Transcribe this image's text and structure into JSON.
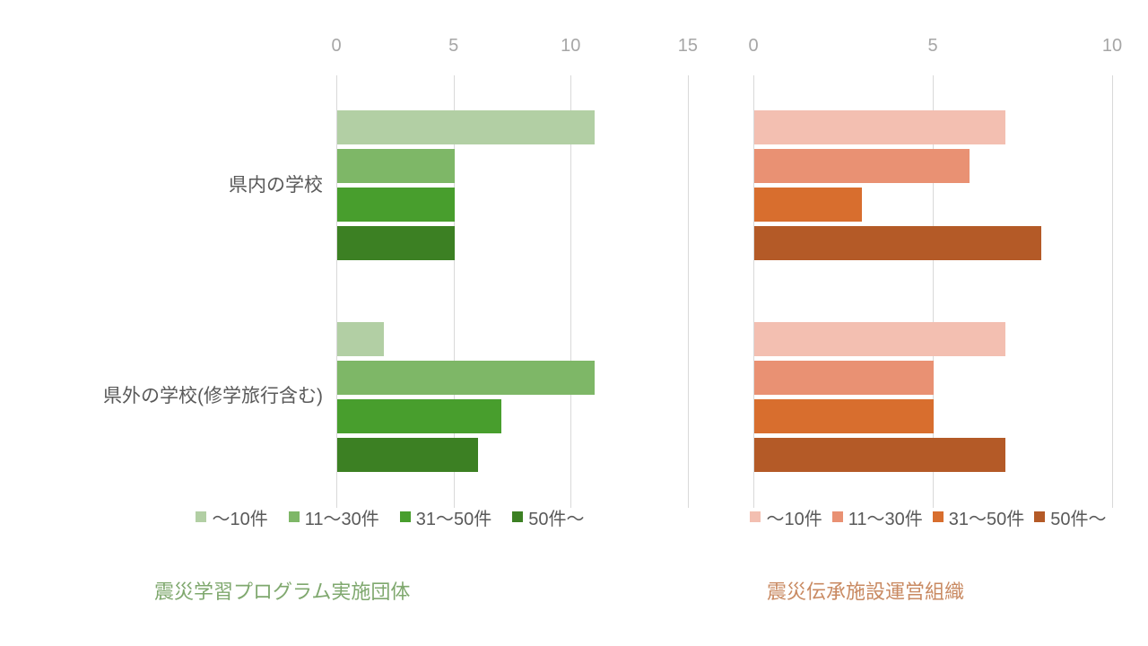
{
  "page": {
    "background": "#ffffff",
    "gridline_color": "#d9d9d9",
    "tick_label_color": "#a6a6a6",
    "category_label_color": "#595959",
    "legend_text_color": "#595959"
  },
  "chart_data": [
    {
      "type": "bar",
      "orientation": "horizontal",
      "title": "震災学習プログラム実施団体",
      "title_color": "#7fa86e",
      "categories": [
        "県内の学校",
        "県外の学校(修学旅行含む)"
      ],
      "series": [
        {
          "name": "～10件",
          "color": "#b2cfa4",
          "values": [
            11,
            2
          ]
        },
        {
          "name": "11～30件",
          "color": "#7eb767",
          "values": [
            5,
            11
          ]
        },
        {
          "name": "31～50件",
          "color": "#489e2d",
          "values": [
            5,
            7
          ]
        },
        {
          "name": "50件～",
          "color": "#3c8023",
          "values": [
            5,
            6
          ]
        }
      ],
      "xlim": [
        0,
        16
      ],
      "tick_values": [
        0,
        5,
        10,
        15
      ],
      "grid": true,
      "legend_position": "bottom"
    },
    {
      "type": "bar",
      "orientation": "horizontal",
      "title": "震災伝承施設運営組織",
      "title_color": "#c98a62",
      "categories": [
        "県内の学校",
        "県外の学校(修学旅行含む)"
      ],
      "series": [
        {
          "name": "～10件",
          "color": "#f3bfb1",
          "values": [
            7,
            7
          ]
        },
        {
          "name": "11～30件",
          "color": "#e99173",
          "values": [
            6,
            5
          ]
        },
        {
          "name": "31～50件",
          "color": "#d86e2e",
          "values": [
            3,
            5
          ]
        },
        {
          "name": "50件～",
          "color": "#b45a27",
          "values": [
            8,
            7
          ]
        }
      ],
      "xlim": [
        0,
        10
      ],
      "tick_values": [
        0,
        5,
        10
      ],
      "grid": true,
      "legend_position": "bottom"
    }
  ]
}
